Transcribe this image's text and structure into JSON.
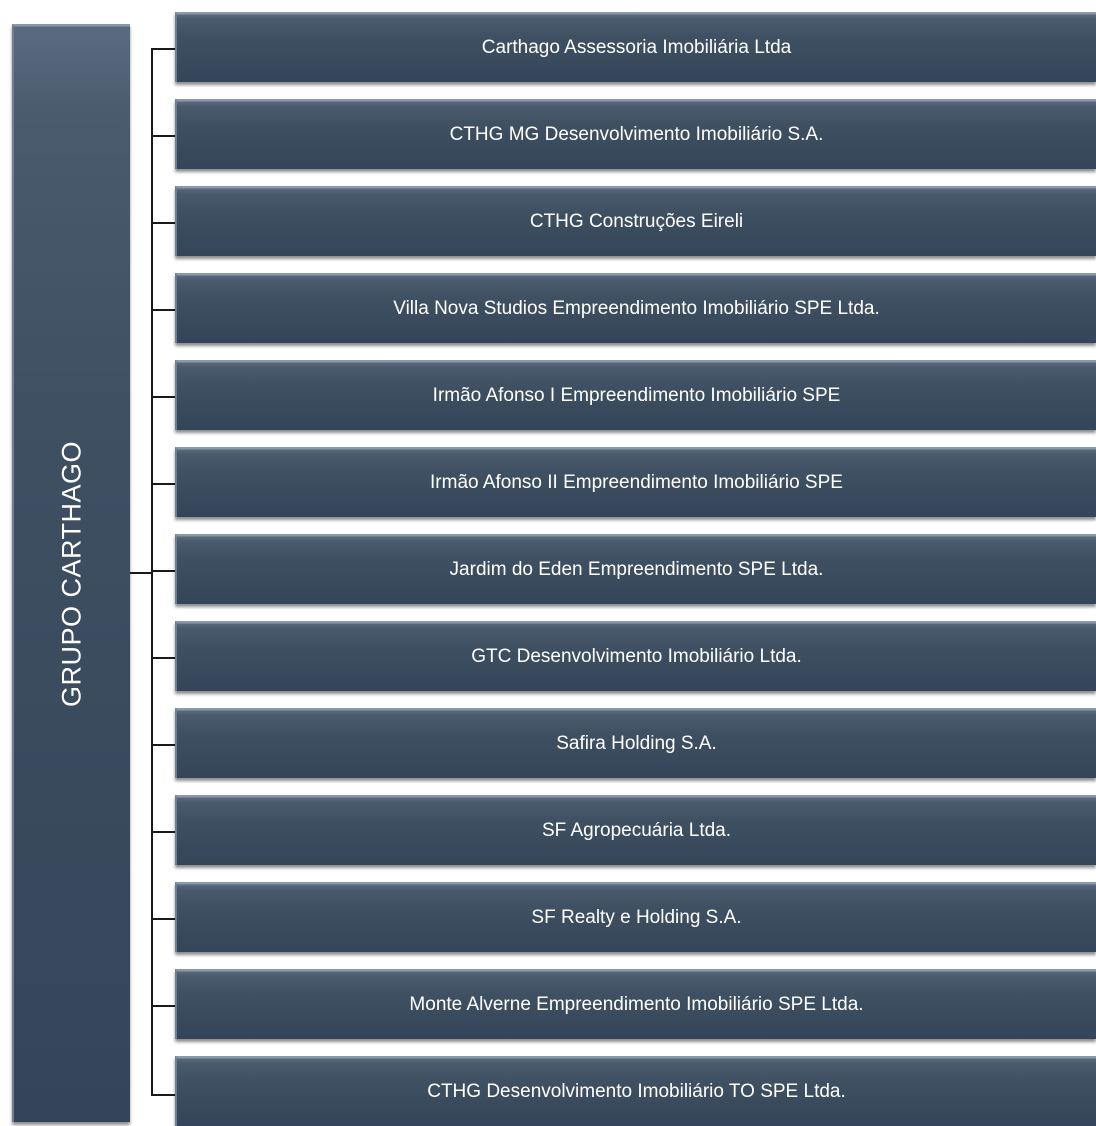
{
  "root": {
    "label": "GRUPO CARTHAGO"
  },
  "children": [
    {
      "label": "Carthago Assessoria Imobiliária Ltda"
    },
    {
      "label": "CTHG MG Desenvolvimento Imobiliário S.A."
    },
    {
      "label": "CTHG Construções Eireli"
    },
    {
      "label": "Villa Nova Studios Empreendimento Imobiliário SPE Ltda."
    },
    {
      "label": "Irmão Afonso I Empreendimento Imobiliário SPE"
    },
    {
      "label": "Irmão Afonso II Empreendimento Imobiliário SPE"
    },
    {
      "label": "Jardim do Eden Empreendimento SPE Ltda."
    },
    {
      "label": "GTC Desenvolvimento Imobiliário Ltda."
    },
    {
      "label": "Safira Holding S.A."
    },
    {
      "label": "SF Agropecuária Ltda."
    },
    {
      "label": "SF Realty e Holding S.A."
    },
    {
      "label": "Monte Alverne Empreendimento Imobiliário SPE Ltda."
    },
    {
      "label": "CTHG Desenvolvimento Imobiliário TO SPE Ltda."
    }
  ]
}
